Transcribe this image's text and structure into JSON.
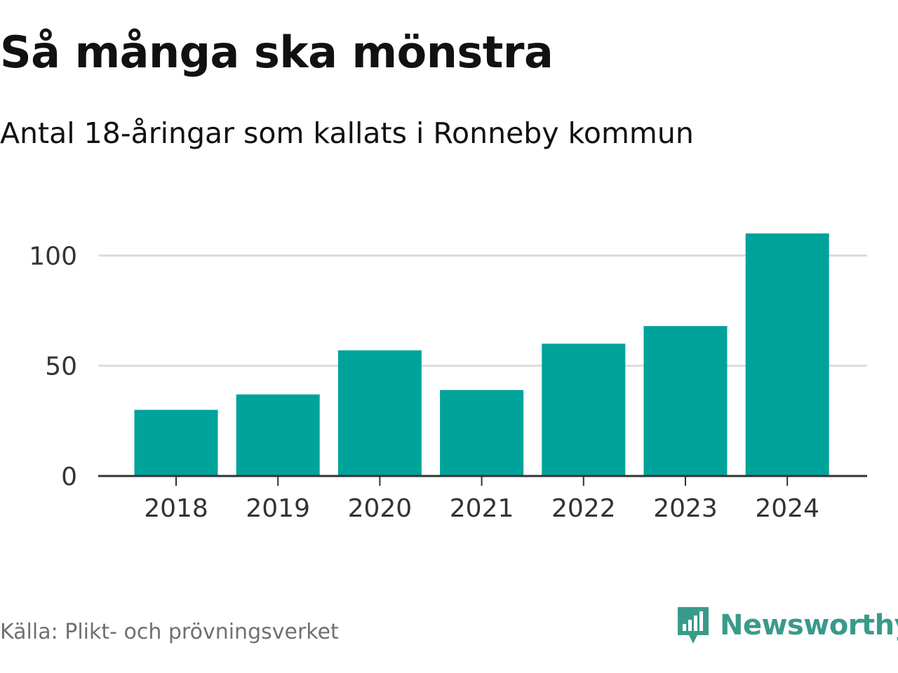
{
  "header": {
    "title": "Så många ska mönstra",
    "subtitle": "Antal 18-åringar som kallats i Ronneby kommun"
  },
  "footer": {
    "source": "Källa: Plikt- och prövningsverket",
    "brand": "Newsworthy"
  },
  "colors": {
    "bar": "#00a39a",
    "grid": "#dcdcdc",
    "axis": "#333333",
    "brand": "#3a9a8a"
  },
  "icons": {
    "brand_logo": "bar-chart-speech-bubble-icon"
  },
  "chart_data": {
    "type": "bar",
    "categories": [
      "2018",
      "2019",
      "2020",
      "2021",
      "2022",
      "2023",
      "2024"
    ],
    "values": [
      30,
      37,
      57,
      39,
      60,
      68,
      110
    ],
    "ylim": [
      0,
      110
    ],
    "yticks": [
      0,
      50,
      100
    ],
    "grid": true,
    "xlabel": "",
    "ylabel": ""
  }
}
